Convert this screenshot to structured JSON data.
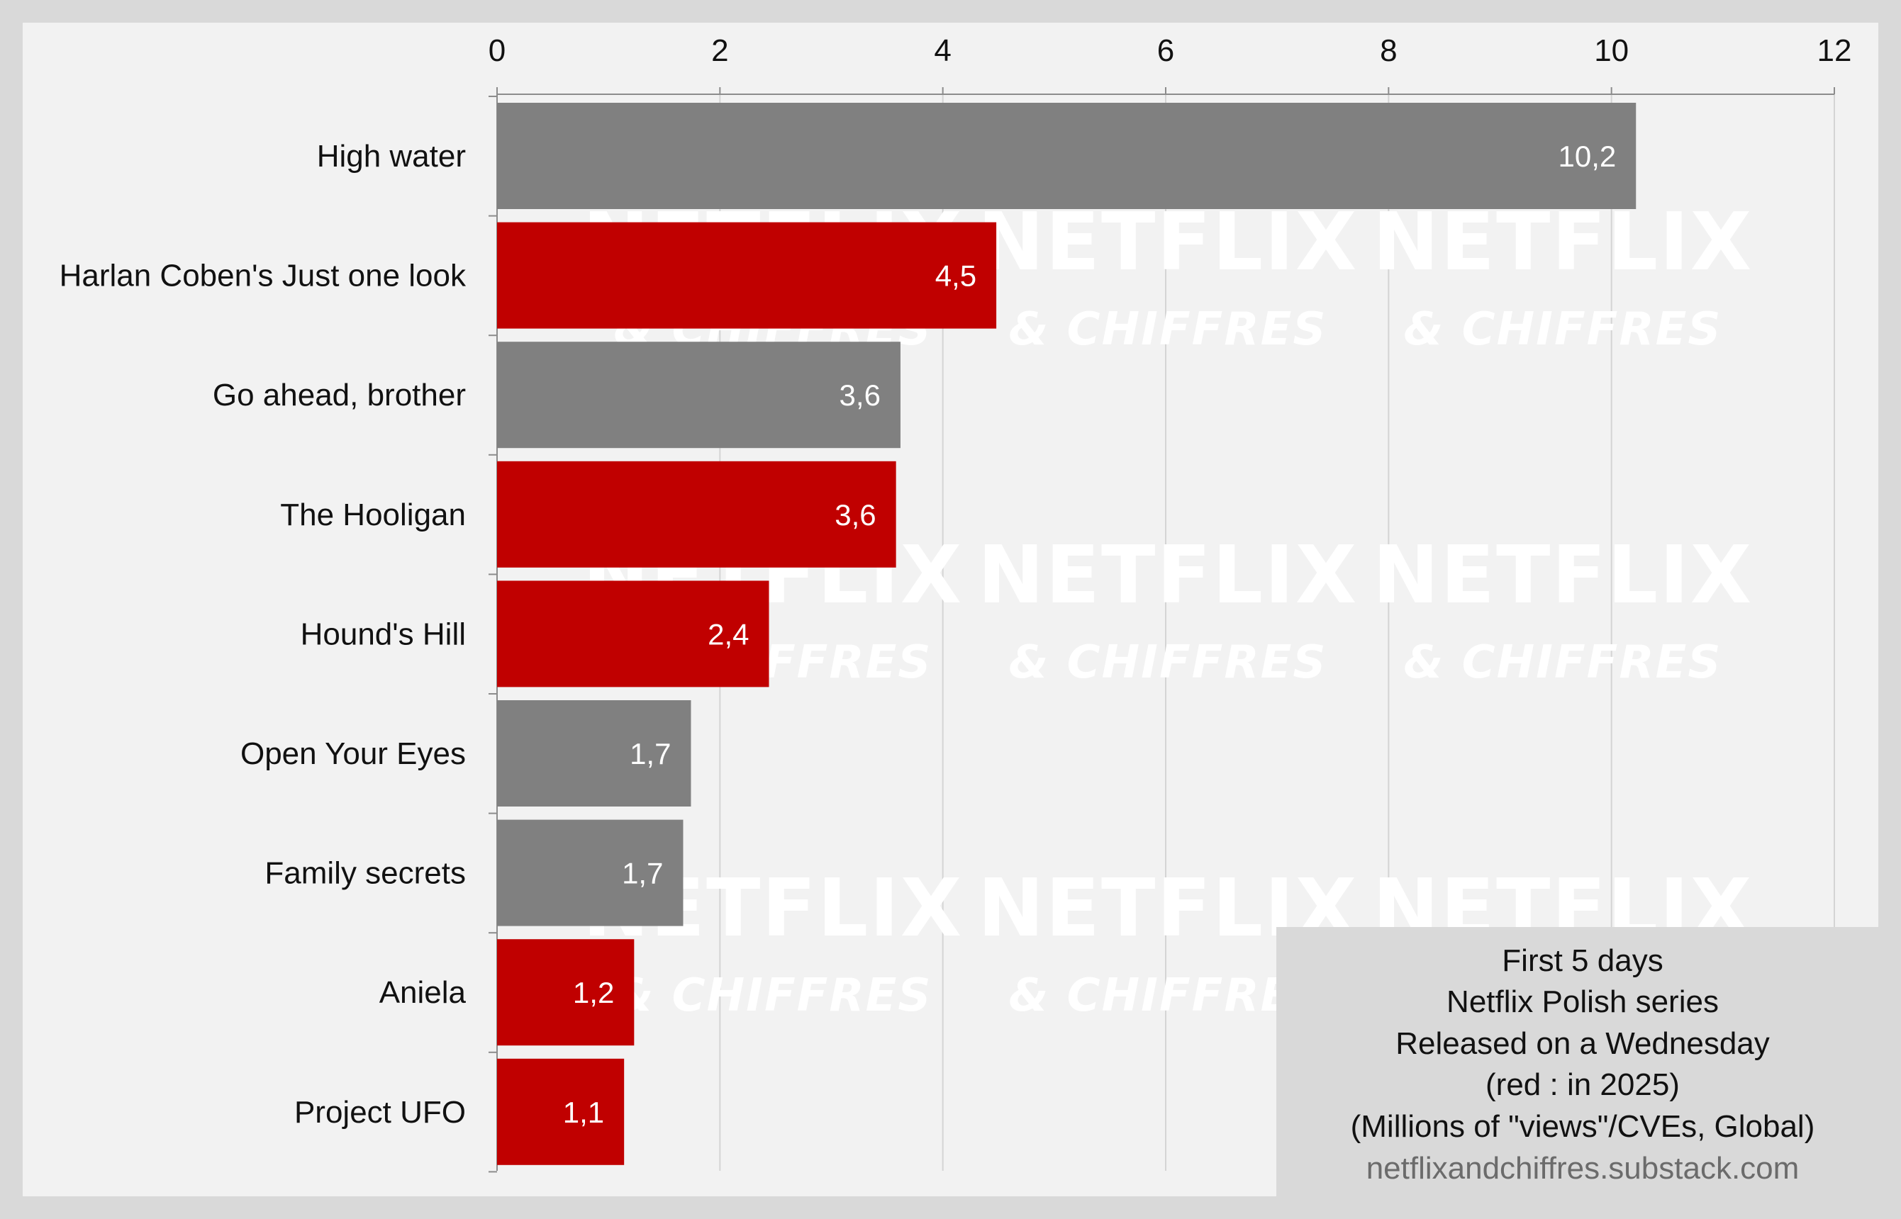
{
  "chart_data": {
    "type": "bar",
    "orientation": "horizontal",
    "categories": [
      "High water",
      "Harlan Coben's Just one look",
      "Go ahead, brother",
      "The Hooligan",
      "Hound's Hill",
      "Open Your Eyes",
      "Family secrets",
      "Aniela",
      "Project UFO"
    ],
    "values": [
      10.22,
      4.48,
      3.62,
      3.58,
      2.44,
      1.74,
      1.67,
      1.23,
      1.14
    ],
    "value_labels": [
      "10,2",
      "4,5",
      "3,6",
      "3,6",
      "2,4",
      "1,7",
      "1,7",
      "1,2",
      "1,1"
    ],
    "highlight_2025": [
      false,
      true,
      false,
      true,
      true,
      false,
      false,
      true,
      true
    ],
    "colors": {
      "default": "#808080",
      "highlight": "#c00000"
    },
    "xlim": [
      0,
      12
    ],
    "x_ticks": [
      0,
      2,
      4,
      6,
      8,
      10,
      12
    ],
    "x_tick_labels": [
      "0",
      "2",
      "4",
      "6",
      "8",
      "10",
      "12"
    ],
    "x_axis_position": "top",
    "grid": true,
    "xlabel": "",
    "ylabel": ""
  },
  "info_box": {
    "lines": [
      "First 5 days",
      "Netflix Polish series",
      "Released on a Wednesday",
      "(red : in 2025)",
      "(Millions of \"views\"/CVEs, Global)"
    ],
    "source": "netflixandchiffres.substack.com"
  },
  "watermark": {
    "line1": "NETFLIX",
    "line2": "& CHIFFRES"
  }
}
